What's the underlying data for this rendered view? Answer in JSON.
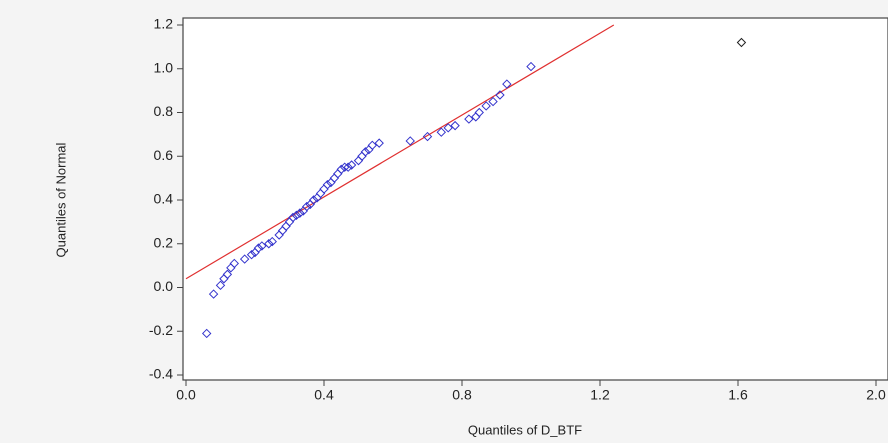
{
  "chart_data": {
    "type": "scatter",
    "xlabel": "Quantiles of D_BTF",
    "ylabel": "Quantiles of Normal",
    "xlim": [
      0,
      2
    ],
    "ylim": [
      -0.4,
      1.2
    ],
    "xticks": [
      {
        "value": 0,
        "label": "0.0"
      },
      0.4,
      0.8,
      1.2,
      1.6,
      {
        "value": 2,
        "label": "2.0"
      }
    ],
    "yticks": [
      -0.4,
      -0.2,
      {
        "value": 0,
        "label": "0.0"
      },
      0.2,
      0.4,
      0.6,
      0.8,
      {
        "value": 1,
        "label": "1.0"
      },
      1.2
    ],
    "series": [
      {
        "color": "#3333cc",
        "x": [
          0.06,
          0.08,
          0.1,
          0.11,
          0.12,
          0.13,
          0.14,
          0.17,
          0.19,
          0.2,
          0.21,
          0.22,
          0.24,
          0.25,
          0.27,
          0.28,
          0.29,
          0.3,
          0.31,
          0.32,
          0.33,
          0.34,
          0.35,
          0.36,
          0.37,
          0.38,
          0.39,
          0.4,
          0.41,
          0.42,
          0.43,
          0.44,
          0.45,
          0.46,
          0.47,
          0.48,
          0.5,
          0.51,
          0.52,
          0.53,
          0.54,
          0.56,
          0.65,
          0.7,
          0.74,
          0.76,
          0.78,
          0.82,
          0.84,
          0.85,
          0.87,
          0.89,
          0.91,
          0.93,
          1.0
        ],
        "values": [
          -0.21,
          -0.03,
          0.01,
          0.04,
          0.06,
          0.09,
          0.11,
          0.13,
          0.15,
          0.16,
          0.18,
          0.19,
          0.2,
          0.21,
          0.24,
          0.26,
          0.28,
          0.3,
          0.32,
          0.33,
          0.34,
          0.35,
          0.37,
          0.38,
          0.4,
          0.41,
          0.43,
          0.45,
          0.47,
          0.48,
          0.5,
          0.52,
          0.54,
          0.55,
          0.55,
          0.56,
          0.58,
          0.6,
          0.62,
          0.63,
          0.65,
          0.66,
          0.67,
          0.69,
          0.71,
          0.73,
          0.74,
          0.77,
          0.78,
          0.8,
          0.83,
          0.85,
          0.88,
          0.93,
          1.01
        ]
      },
      {
        "color": "#222222",
        "x": [
          1.61
        ],
        "values": [
          1.12
        ]
      }
    ],
    "reference_line": {
      "color": "#e03030",
      "x": [
        0,
        1.24
      ],
      "values": [
        0.04,
        1.2
      ]
    }
  }
}
